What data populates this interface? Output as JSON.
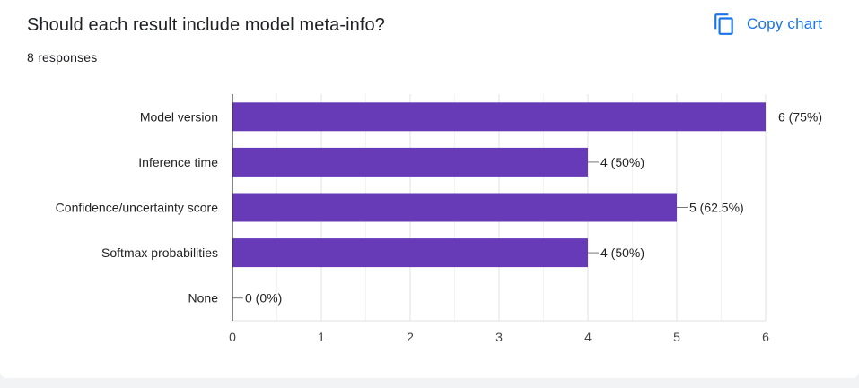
{
  "header": {
    "title": "Should each result include model meta-info?",
    "responses": "8 responses",
    "copy_label": "Copy chart",
    "copy_icon": "copy-icon"
  },
  "colors": {
    "bar": "#673ab7",
    "accent": "#1a73e8"
  },
  "chart_data": {
    "type": "bar",
    "orientation": "horizontal",
    "title": "Should each result include model meta-info?",
    "subtitle": "8 responses",
    "categories": [
      "Model version",
      "Inference time",
      "Confidence/uncertainty score",
      "Softmax probabilities",
      "None"
    ],
    "values": [
      6,
      4,
      5,
      4,
      0
    ],
    "data_labels": [
      "6 (75%)",
      "4 (50%)",
      "5 (62.5%)",
      "4 (50%)",
      "0 (0%)"
    ],
    "xlim": [
      0,
      6
    ],
    "ticks": [
      0,
      1,
      2,
      3,
      4,
      5,
      6
    ],
    "tick_labels": [
      "0",
      "1",
      "2",
      "3",
      "4",
      "5",
      "6"
    ],
    "grid": true,
    "legend": "none"
  }
}
